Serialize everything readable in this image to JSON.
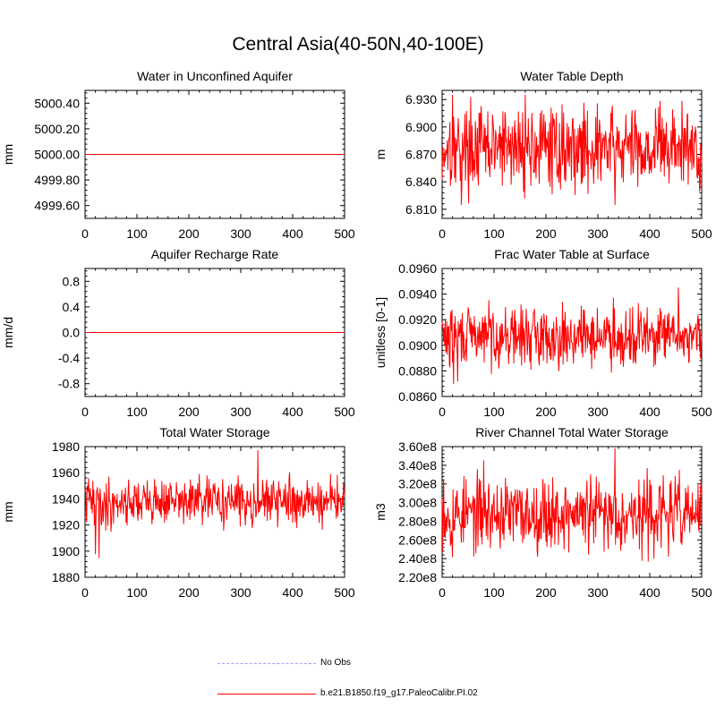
{
  "figure": {
    "title": "Central Asia(40-50N,40-100E)"
  },
  "colors": {
    "model": "#ff0000",
    "obs": "#9f9fff",
    "axis": "#000000"
  },
  "legend": [
    {
      "label": "No Obs",
      "style": "dashed",
      "color": "#9f9fff"
    },
    {
      "label": "b.e21.B1850.f19_g17.PaleoCalibr.PI.02",
      "style": "solid",
      "color": "#ff0000"
    }
  ],
  "chart_data": [
    {
      "type": "line",
      "title": "Water in Unconfined Aquifer",
      "ylabel": "mm",
      "xlim": [
        0,
        500
      ],
      "ylim": [
        4999.5,
        5000.5
      ],
      "xticks": [
        0,
        100,
        200,
        300,
        400,
        500
      ],
      "yticks": [
        4999.6,
        4999.8,
        5000.0,
        5000.2,
        5000.4
      ],
      "ytick_labels": [
        "4999.60",
        "4999.80",
        "5000.00",
        "5000.20",
        "5000.40"
      ],
      "series": [
        {
          "kind": "constant",
          "value": 5000.0,
          "start": 0,
          "end": 500
        }
      ]
    },
    {
      "type": "line",
      "title": "Water Table Depth",
      "ylabel": "m",
      "xlim": [
        0,
        500
      ],
      "ylim": [
        6.8,
        6.94
      ],
      "xticks": [
        0,
        100,
        200,
        300,
        400,
        500
      ],
      "yticks": [
        6.81,
        6.84,
        6.87,
        6.9,
        6.93
      ],
      "ytick_labels": [
        "6.810",
        "6.840",
        "6.870",
        "6.900",
        "6.930"
      ],
      "series": [
        {
          "kind": "noisy",
          "mean": 6.877,
          "amp": 0.022,
          "min": 6.815,
          "max": 6.935,
          "seed": 17,
          "anchors": [
            [
              0,
              6.842
            ],
            [
              3,
              6.862
            ],
            [
              10,
              6.885
            ],
            [
              15,
              6.905
            ],
            [
              20,
              6.935
            ],
            [
              25,
              6.888
            ],
            [
              37,
              6.815
            ],
            [
              160,
              6.935
            ],
            [
              333,
              6.815
            ],
            [
              420,
              6.928
            ],
            [
              497,
              6.836
            ],
            [
              500,
              6.862
            ]
          ]
        }
      ]
    },
    {
      "type": "line",
      "title": "Aquifer Recharge Rate",
      "ylabel": "mm/d",
      "xlim": [
        0,
        500
      ],
      "ylim": [
        -1.0,
        1.0
      ],
      "xticks": [
        0,
        100,
        200,
        300,
        400,
        500
      ],
      "yticks": [
        -0.8,
        -0.4,
        0.0,
        0.4,
        0.8
      ],
      "ytick_labels": [
        "-0.8",
        "-0.4",
        "0.0",
        "0.4",
        "0.8"
      ],
      "series": [
        {
          "kind": "constant",
          "value": 0.0,
          "start": 0,
          "end": 500
        }
      ]
    },
    {
      "type": "line",
      "title": "Frac Water Table at Surface",
      "ylabel": "unitless [0-1]",
      "xlim": [
        0,
        500
      ],
      "ylim": [
        0.086,
        0.096
      ],
      "xticks": [
        0,
        100,
        200,
        300,
        400,
        500
      ],
      "yticks": [
        0.086,
        0.088,
        0.09,
        0.092,
        0.094,
        0.096
      ],
      "ytick_labels": [
        "0.0860",
        "0.0880",
        "0.0900",
        "0.0920",
        "0.0940",
        "0.0960"
      ],
      "series": [
        {
          "kind": "noisy",
          "mean": 0.0907,
          "amp": 0.0011,
          "min": 0.087,
          "max": 0.0945,
          "seed": 29,
          "anchors": [
            [
              0,
              0.0918
            ],
            [
              5,
              0.09
            ],
            [
              15,
              0.0883
            ],
            [
              22,
              0.087
            ],
            [
              30,
              0.0872
            ],
            [
              90,
              0.0935
            ],
            [
              330,
              0.0937
            ],
            [
              455,
              0.0945
            ],
            [
              500,
              0.0905
            ]
          ]
        }
      ]
    },
    {
      "type": "line",
      "title": "Total Water Storage",
      "ylabel": "mm",
      "xlim": [
        0,
        500
      ],
      "ylim": [
        1880,
        1980
      ],
      "xticks": [
        0,
        100,
        200,
        300,
        400,
        500
      ],
      "yticks": [
        1880,
        1900,
        1920,
        1940,
        1960,
        1980
      ],
      "ytick_labels": [
        "1880",
        "1900",
        "1920",
        "1940",
        "1960",
        "1980"
      ],
      "series": [
        {
          "kind": "noisy",
          "mean": 1938,
          "amp": 8.5,
          "min": 1895,
          "max": 1977,
          "seed": 41,
          "anchors": [
            [
              0,
              1945
            ],
            [
              5,
              1950
            ],
            [
              10,
              1948
            ],
            [
              18,
              1920
            ],
            [
              20,
              1898
            ],
            [
              27,
              1895
            ],
            [
              32,
              1920
            ],
            [
              40,
              1916
            ],
            [
              50,
              1915
            ],
            [
              80,
              1935
            ],
            [
              333,
              1977
            ],
            [
              360,
              1932
            ],
            [
              400,
              1922
            ],
            [
              500,
              1942
            ]
          ]
        }
      ]
    },
    {
      "type": "line",
      "title": "River Channel Total Water Storage",
      "ylabel": "m3",
      "xlim": [
        0,
        500
      ],
      "ylim": [
        220000000.0,
        360000000.0
      ],
      "xticks": [
        0,
        100,
        200,
        300,
        400,
        500
      ],
      "yticks": [
        220000000.0,
        240000000.0,
        260000000.0,
        280000000.0,
        300000000.0,
        320000000.0,
        340000000.0,
        360000000.0
      ],
      "ytick_labels": [
        "2.20e8",
        "2.40e8",
        "2.60e8",
        "2.80e8",
        "3.00e8",
        "3.20e8",
        "3.40e8",
        "3.60e8"
      ],
      "series": [
        {
          "kind": "noisy",
          "mean": 288000000.0,
          "amp": 19000000.0,
          "min": 237000000.0,
          "max": 358000000.0,
          "seed": 53,
          "anchors": [
            [
              0,
              305000000.0
            ],
            [
              3,
              325000000.0
            ],
            [
              8,
              285000000.0
            ],
            [
              20,
              242000000.0
            ],
            [
              80,
              345000000.0
            ],
            [
              333,
              358000000.0
            ],
            [
              385,
              238000000.0
            ],
            [
              500,
              308000000.0
            ]
          ]
        }
      ]
    }
  ]
}
